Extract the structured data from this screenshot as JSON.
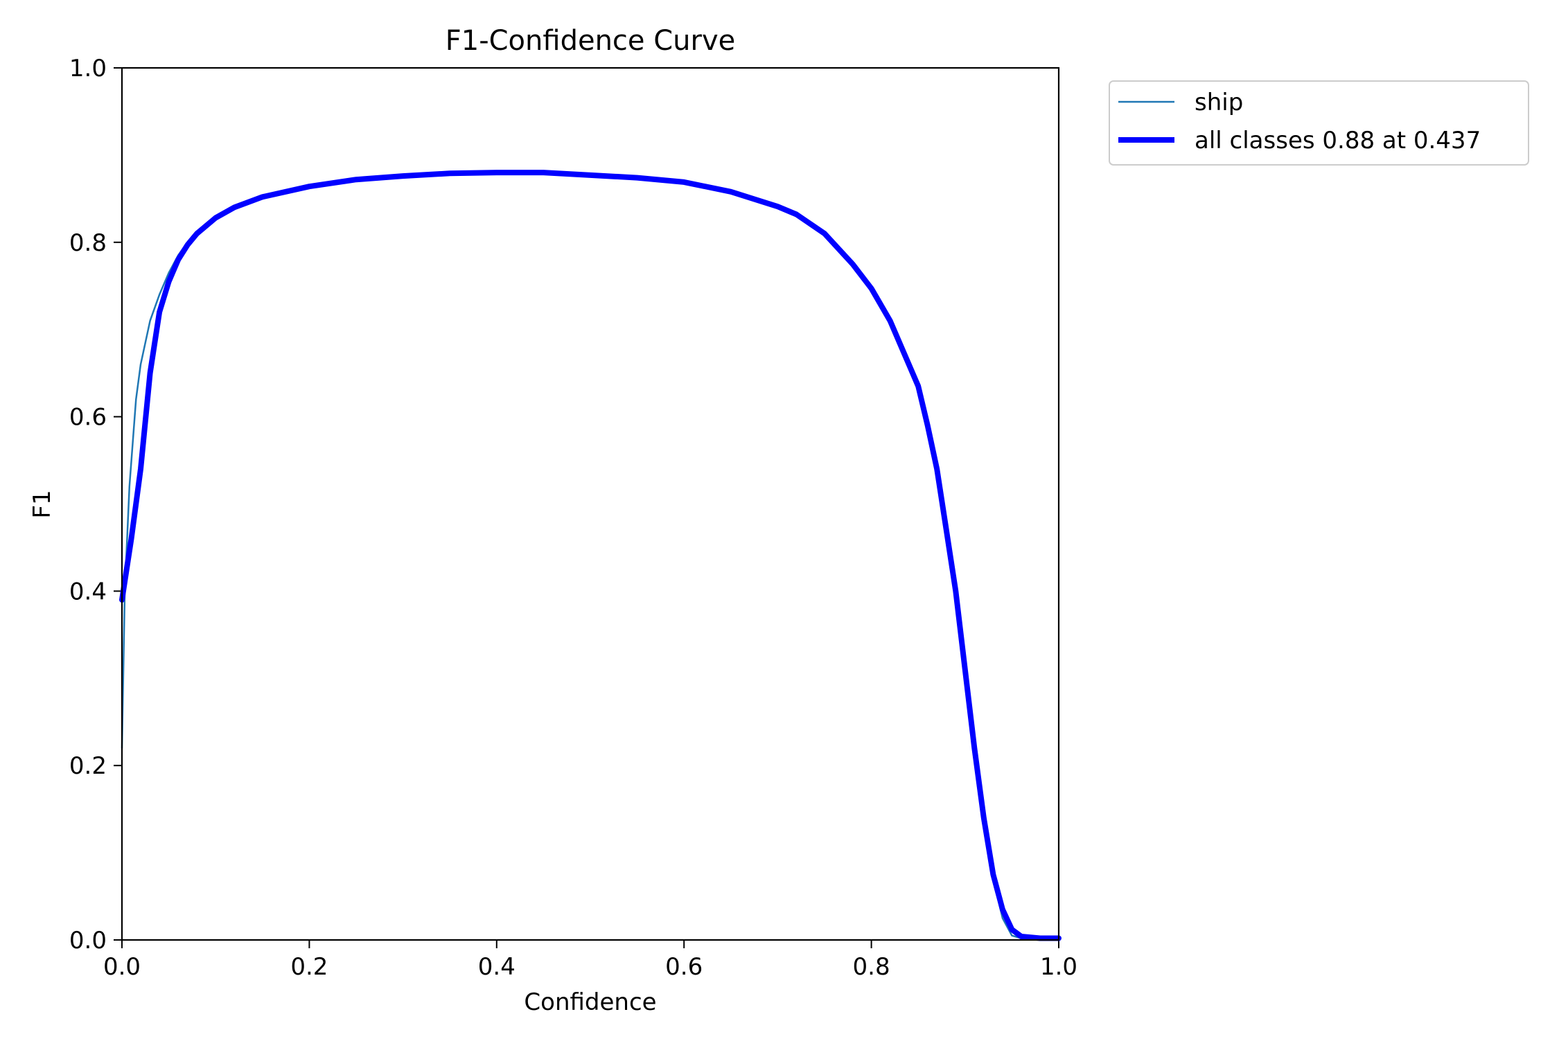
{
  "chart_data": {
    "type": "line",
    "title": "F1-Confidence Curve",
    "xlabel": "Confidence",
    "ylabel": "F1",
    "xlim": [
      0.0,
      1.0
    ],
    "ylim": [
      0.0,
      1.0
    ],
    "xticks": [
      "0.0",
      "0.2",
      "0.4",
      "0.6",
      "0.8",
      "1.0"
    ],
    "yticks": [
      "0.0",
      "0.2",
      "0.4",
      "0.6",
      "0.8",
      "1.0"
    ],
    "grid": false,
    "legend_position": "outside-top-right",
    "series": [
      {
        "name": "ship",
        "color": "#1f77b4",
        "style": "thin",
        "points": [
          [
            0.0,
            0.22
          ],
          [
            0.003,
            0.4
          ],
          [
            0.008,
            0.52
          ],
          [
            0.015,
            0.62
          ],
          [
            0.02,
            0.66
          ],
          [
            0.03,
            0.71
          ],
          [
            0.04,
            0.74
          ],
          [
            0.05,
            0.765
          ],
          [
            0.06,
            0.785
          ],
          [
            0.07,
            0.8
          ],
          [
            0.08,
            0.81
          ],
          [
            0.1,
            0.828
          ],
          [
            0.12,
            0.84
          ],
          [
            0.15,
            0.852
          ],
          [
            0.2,
            0.864
          ],
          [
            0.25,
            0.872
          ],
          [
            0.3,
            0.876
          ],
          [
            0.35,
            0.879
          ],
          [
            0.4,
            0.88
          ],
          [
            0.45,
            0.88
          ],
          [
            0.5,
            0.877
          ],
          [
            0.55,
            0.874
          ],
          [
            0.6,
            0.869
          ],
          [
            0.65,
            0.858
          ],
          [
            0.7,
            0.841
          ],
          [
            0.72,
            0.832
          ],
          [
            0.75,
            0.81
          ],
          [
            0.78,
            0.775
          ],
          [
            0.8,
            0.747
          ],
          [
            0.82,
            0.71
          ],
          [
            0.84,
            0.66
          ],
          [
            0.85,
            0.635
          ],
          [
            0.86,
            0.59
          ],
          [
            0.87,
            0.54
          ],
          [
            0.88,
            0.47
          ],
          [
            0.89,
            0.4
          ],
          [
            0.9,
            0.31
          ],
          [
            0.91,
            0.22
          ],
          [
            0.92,
            0.14
          ],
          [
            0.93,
            0.07
          ],
          [
            0.94,
            0.025
          ],
          [
            0.95,
            0.005
          ],
          [
            0.96,
            0.002
          ],
          [
            1.0,
            0.002
          ]
        ]
      },
      {
        "name": "all classes 0.88 at 0.437",
        "color": "#0000ff",
        "style": "thick",
        "points": [
          [
            0.0,
            0.39
          ],
          [
            0.01,
            0.46
          ],
          [
            0.02,
            0.54
          ],
          [
            0.03,
            0.65
          ],
          [
            0.04,
            0.72
          ],
          [
            0.05,
            0.755
          ],
          [
            0.06,
            0.78
          ],
          [
            0.07,
            0.797
          ],
          [
            0.08,
            0.81
          ],
          [
            0.1,
            0.828
          ],
          [
            0.12,
            0.84
          ],
          [
            0.15,
            0.852
          ],
          [
            0.2,
            0.864
          ],
          [
            0.25,
            0.872
          ],
          [
            0.3,
            0.876
          ],
          [
            0.35,
            0.879
          ],
          [
            0.4,
            0.88
          ],
          [
            0.437,
            0.88
          ],
          [
            0.45,
            0.88
          ],
          [
            0.5,
            0.877
          ],
          [
            0.55,
            0.874
          ],
          [
            0.6,
            0.869
          ],
          [
            0.65,
            0.858
          ],
          [
            0.7,
            0.841
          ],
          [
            0.72,
            0.832
          ],
          [
            0.75,
            0.81
          ],
          [
            0.78,
            0.775
          ],
          [
            0.8,
            0.747
          ],
          [
            0.82,
            0.71
          ],
          [
            0.84,
            0.66
          ],
          [
            0.85,
            0.635
          ],
          [
            0.86,
            0.59
          ],
          [
            0.87,
            0.54
          ],
          [
            0.88,
            0.47
          ],
          [
            0.89,
            0.4
          ],
          [
            0.9,
            0.31
          ],
          [
            0.91,
            0.22
          ],
          [
            0.92,
            0.14
          ],
          [
            0.93,
            0.075
          ],
          [
            0.94,
            0.035
          ],
          [
            0.95,
            0.012
          ],
          [
            0.96,
            0.004
          ],
          [
            0.98,
            0.002
          ],
          [
            1.0,
            0.002
          ]
        ]
      }
    ]
  }
}
